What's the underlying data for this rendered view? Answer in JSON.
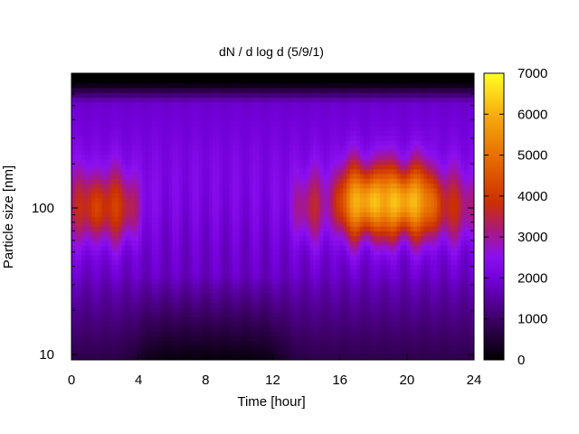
{
  "chart_data": {
    "type": "heatmap",
    "title": "dN / d log d (5/9/1)",
    "xlabel": "Time [hour]",
    "ylabel": "Particle size [nm]",
    "x_ticks": [
      0,
      4,
      8,
      12,
      16,
      20,
      24
    ],
    "xlim": [
      0,
      24
    ],
    "y_scale": "log",
    "y_ticks": [
      10,
      100
    ],
    "ylim_nm": [
      9.2,
      830
    ],
    "colorbar": {
      "ticks": [
        0,
        1000,
        2000,
        3000,
        4000,
        5000,
        6000,
        7000
      ],
      "range": [
        0,
        7000
      ],
      "palette": "black-purple-blue-red-orange-yellow"
    },
    "grid": false,
    "legend": "none",
    "features": [
      {
        "x_hours": [
          0.0,
          3.8
        ],
        "peak_diameter_nm": 100,
        "peak_value": 3800
      },
      {
        "x_hours": [
          13.5,
          15.0
        ],
        "peak_diameter_nm": 100,
        "peak_value": 3500
      },
      {
        "x_hours": [
          16.0,
          21.5
        ],
        "peak_diameter_nm": 110,
        "peak_value": 5800
      },
      {
        "x_hours": [
          21.5,
          24.0
        ],
        "peak_diameter_nm": 100,
        "peak_value": 3400
      }
    ]
  }
}
